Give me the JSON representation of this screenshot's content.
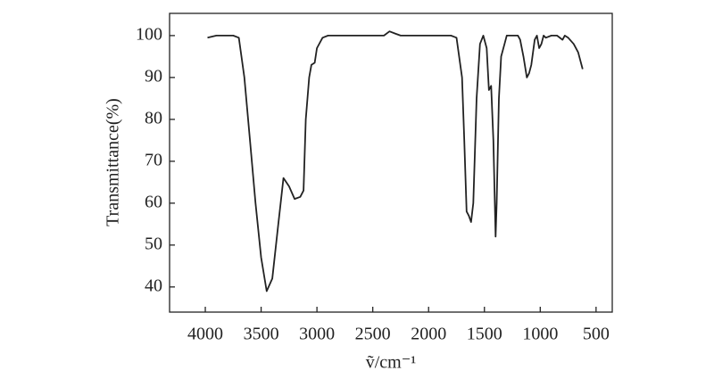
{
  "chart_data": {
    "type": "line",
    "xlabel": "ṽ/cm⁻¹",
    "ylabel": "Transmittance(%)",
    "x": [
      3980,
      3900,
      3750,
      3700,
      3650,
      3600,
      3550,
      3500,
      3450,
      3400,
      3350,
      3300,
      3250,
      3200,
      3150,
      3120,
      3100,
      3070,
      3050,
      3020,
      3000,
      2950,
      2900,
      2600,
      2400,
      2350,
      2300,
      2250,
      2000,
      1800,
      1750,
      1700,
      1680,
      1660,
      1640,
      1620,
      1600,
      1570,
      1540,
      1510,
      1480,
      1460,
      1440,
      1420,
      1400,
      1390,
      1370,
      1350,
      1320,
      1300,
      1250,
      1200,
      1180,
      1150,
      1120,
      1100,
      1080,
      1050,
      1030,
      1010,
      990,
      970,
      950,
      900,
      850,
      800,
      780,
      750,
      700,
      660,
      620
    ],
    "values": [
      99.5,
      100,
      100,
      99.5,
      90,
      75,
      60,
      47,
      39,
      42,
      54,
      66,
      64,
      61,
      61.5,
      63,
      80,
      90,
      93,
      93.5,
      97,
      99.5,
      100,
      100,
      100,
      101,
      100.5,
      100,
      100,
      100,
      99.5,
      90,
      75,
      58,
      57,
      55.5,
      60,
      85,
      98,
      100,
      97,
      87,
      88,
      75,
      52,
      60,
      85,
      95,
      98,
      100,
      100,
      100,
      99,
      95,
      90,
      91,
      93,
      99,
      100,
      97,
      98,
      100,
      99.5,
      100,
      100,
      99,
      100,
      99.5,
      98,
      96,
      92
    ],
    "color": "#222222",
    "xlim": [
      4320,
      355
    ],
    "ylim": [
      34,
      105.3
    ],
    "xticks": [
      4000,
      3500,
      3000,
      2500,
      2000,
      1500,
      1000,
      500
    ],
    "yticks": [
      40,
      50,
      60,
      70,
      80,
      90,
      100
    ]
  }
}
